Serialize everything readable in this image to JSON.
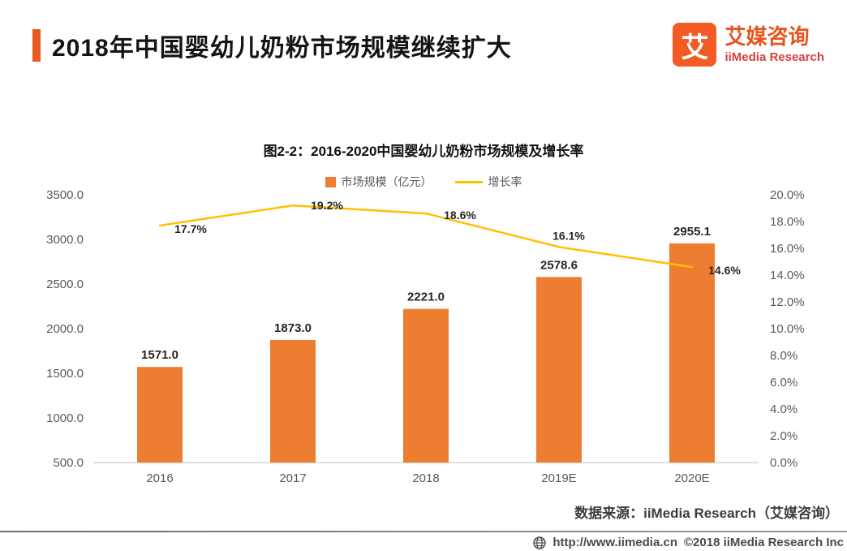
{
  "header": {
    "title": "2018年中国婴幼儿奶粉市场规模继续扩大",
    "logo": {
      "glyph": "艾",
      "name_cn": "艾媒咨询",
      "name_en": "iiMedia Research"
    }
  },
  "chart_data": {
    "type": "bar",
    "title": "图2-2：2016-2020中国婴幼儿奶粉市场规模及增长率",
    "categories": [
      "2016",
      "2017",
      "2018",
      "2019E",
      "2020E"
    ],
    "series": [
      {
        "name": "市场规模（亿元）",
        "type": "bar",
        "axis": "left",
        "color": "#ED7D31",
        "values": [
          1571.0,
          1873.0,
          2221.0,
          2578.6,
          2955.1
        ],
        "labels": [
          "1571.0",
          "1873.0",
          "2221.0",
          "2578.6",
          "2955.1"
        ]
      },
      {
        "name": "增长率",
        "type": "line",
        "axis": "right",
        "color": "#FFC000",
        "values": [
          17.7,
          19.2,
          18.6,
          16.1,
          14.6
        ],
        "labels": [
          "17.7%",
          "19.2%",
          "18.6%",
          "16.1%",
          "14.6%"
        ]
      }
    ],
    "left_axis": {
      "min": 500,
      "max": 3500,
      "step": 500,
      "tick_labels": [
        "3500.0",
        "3000.0",
        "2500.0",
        "2000.0",
        "1500.0",
        "1000.0",
        "500.0"
      ]
    },
    "right_axis": {
      "min": 0,
      "max": 20,
      "step": 2,
      "tick_labels": [
        "20.0%",
        "18.0%",
        "16.0%",
        "14.0%",
        "12.0%",
        "10.0%",
        "8.0%",
        "6.0%",
        "4.0%",
        "2.0%",
        "0.0%"
      ]
    },
    "legend_position": "top",
    "grid": false
  },
  "source_note": "数据来源：iiMedia Research（艾媒咨询）",
  "footer": {
    "url": "http://www.iimedia.cn",
    "copyright": "©2018  iiMedia Research Inc"
  },
  "colors": {
    "accent": "#E85A1E",
    "bar": "#ED7D31",
    "line": "#FFC000",
    "axis_text": "#595959"
  }
}
